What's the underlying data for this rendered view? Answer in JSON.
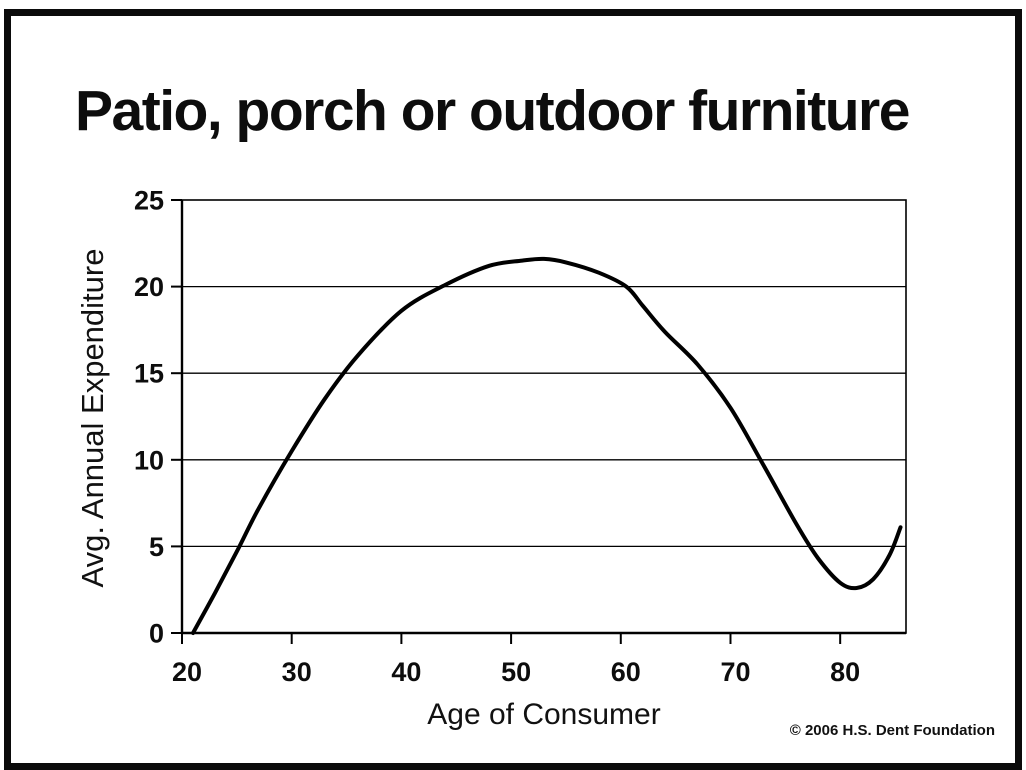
{
  "slide": {
    "title": "Patio, porch or outdoor furniture",
    "copyright": "© 2006 H.S. Dent Foundation"
  },
  "chart_data": {
    "type": "line",
    "title": "Patio, porch or outdoor furniture",
    "xlabel": "Age of Consumer",
    "ylabel": "Avg. Annual Expenditure",
    "xlim": [
      20,
      86
    ],
    "ylim": [
      0,
      25
    ],
    "x_ticks": [
      20,
      30,
      40,
      50,
      60,
      70,
      80
    ],
    "y_ticks": [
      0,
      5,
      10,
      15,
      20,
      25
    ],
    "grid": "horizontal",
    "legend_position": "none",
    "line_color": "#000000",
    "annotations": {
      "curve_start": {
        "age": 21,
        "value": 0
      },
      "curve_peak": {
        "age": 53,
        "value": 21.6
      },
      "curve_trough": {
        "age": 81.5,
        "value": 2.6
      },
      "curve_end": {
        "age": 85.5,
        "value": 6.1
      }
    },
    "series": [
      {
        "name": "Avg. Annual Expenditure",
        "x": [
          21,
          23,
          25,
          27,
          30,
          33,
          36,
          40,
          44,
          48,
          51,
          53,
          55,
          58,
          60.5,
          62,
          64,
          67,
          70,
          73,
          76,
          78,
          80,
          81.5,
          83,
          84.5,
          85.5
        ],
        "y": [
          0,
          2.3,
          4.7,
          7.2,
          10.5,
          13.5,
          16.0,
          18.6,
          20.1,
          21.2,
          21.5,
          21.6,
          21.4,
          20.8,
          20.0,
          18.9,
          17.4,
          15.5,
          13.0,
          9.7,
          6.3,
          4.3,
          2.9,
          2.6,
          3.1,
          4.5,
          6.1
        ]
      }
    ]
  }
}
